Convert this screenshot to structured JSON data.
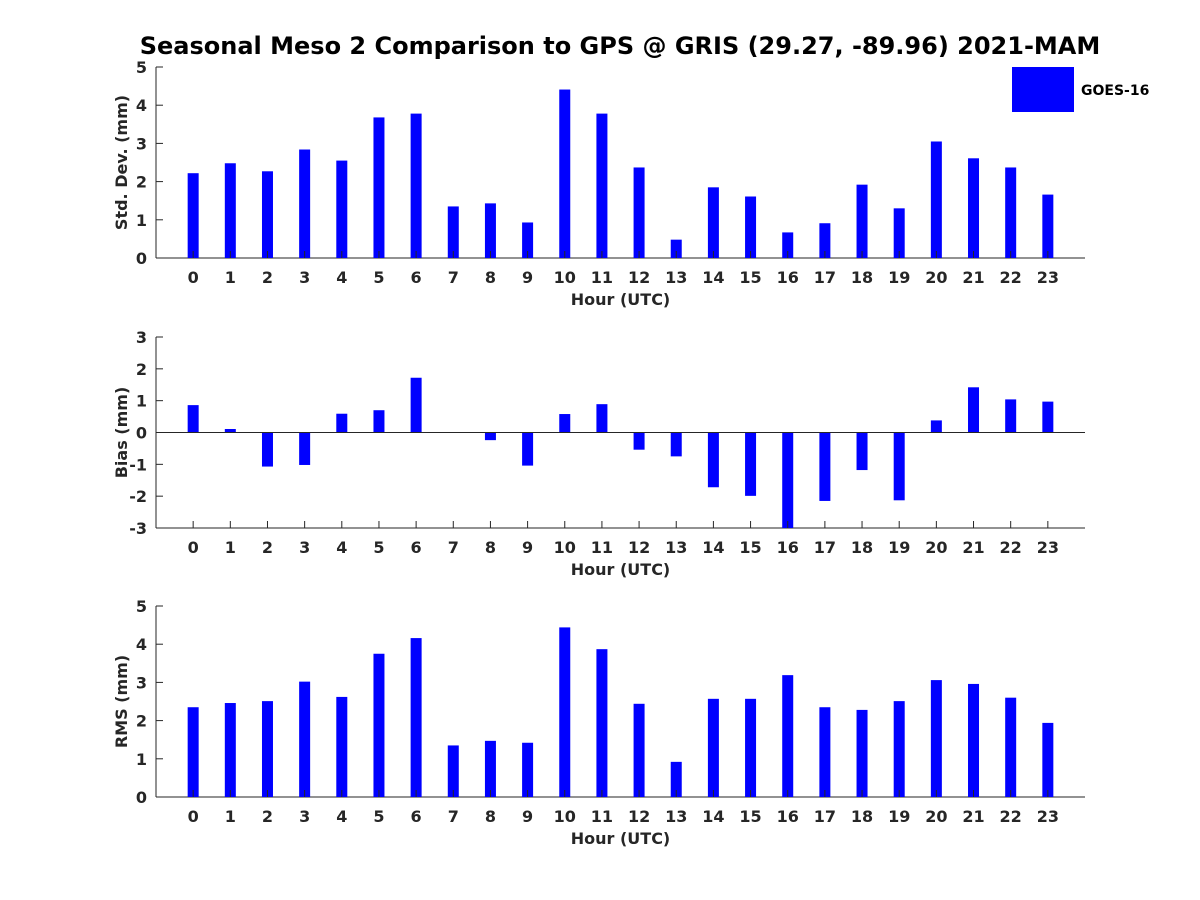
{
  "title": "Seasonal Meso 2 Comparison to GPS @ GRIS (29.27, -89.96) 2021-MAM",
  "legend": {
    "label": "GOES-16",
    "color": "#0000ff"
  },
  "chart_data": [
    {
      "type": "bar",
      "xlabel": "Hour (UTC)",
      "ylabel": "Std. Dev. (mm)",
      "ylim": [
        0,
        5
      ],
      "yticks": [
        0,
        1,
        2,
        3,
        4,
        5
      ],
      "categories": [
        "0",
        "1",
        "2",
        "3",
        "4",
        "5",
        "6",
        "7",
        "8",
        "9",
        "10",
        "11",
        "12",
        "13",
        "14",
        "15",
        "16",
        "17",
        "18",
        "19",
        "20",
        "21",
        "22",
        "23"
      ],
      "series": [
        {
          "name": "GOES-16",
          "values": [
            2.22,
            2.48,
            2.27,
            2.84,
            2.55,
            3.68,
            3.78,
            1.35,
            1.43,
            0.93,
            4.41,
            3.78,
            2.37,
            0.48,
            1.85,
            1.61,
            0.67,
            0.91,
            1.92,
            1.3,
            3.05,
            2.61,
            2.37,
            1.66
          ]
        }
      ]
    },
    {
      "type": "bar",
      "xlabel": "Hour (UTC)",
      "ylabel": "Bias (mm)",
      "ylim": [
        -3,
        3
      ],
      "yticks": [
        -3,
        -2,
        -1,
        0,
        1,
        2,
        3
      ],
      "categories": [
        "0",
        "1",
        "2",
        "3",
        "4",
        "5",
        "6",
        "7",
        "8",
        "9",
        "10",
        "11",
        "12",
        "13",
        "14",
        "15",
        "16",
        "17",
        "18",
        "19",
        "20",
        "21",
        "22",
        "23"
      ],
      "series": [
        {
          "name": "GOES-16",
          "values": [
            0.86,
            0.11,
            -1.07,
            -1.02,
            0.59,
            0.7,
            1.72,
            0.0,
            -0.24,
            -1.04,
            0.58,
            0.89,
            -0.54,
            -0.75,
            -1.72,
            -1.99,
            -3.0,
            -2.15,
            -1.18,
            -2.13,
            0.38,
            1.42,
            1.04,
            0.97
          ]
        }
      ]
    },
    {
      "type": "bar",
      "xlabel": "Hour (UTC)",
      "ylabel": "RMS (mm)",
      "ylim": [
        0,
        5
      ],
      "yticks": [
        0,
        1,
        2,
        3,
        4,
        5
      ],
      "categories": [
        "0",
        "1",
        "2",
        "3",
        "4",
        "5",
        "6",
        "7",
        "8",
        "9",
        "10",
        "11",
        "12",
        "13",
        "14",
        "15",
        "16",
        "17",
        "18",
        "19",
        "20",
        "21",
        "22",
        "23"
      ],
      "series": [
        {
          "name": "GOES-16",
          "values": [
            2.35,
            2.46,
            2.51,
            3.02,
            2.62,
            3.75,
            4.16,
            1.35,
            1.47,
            1.42,
            4.44,
            3.87,
            2.44,
            0.92,
            2.57,
            2.57,
            3.19,
            2.35,
            2.28,
            2.51,
            3.06,
            2.96,
            2.6,
            1.94
          ]
        }
      ]
    }
  ]
}
